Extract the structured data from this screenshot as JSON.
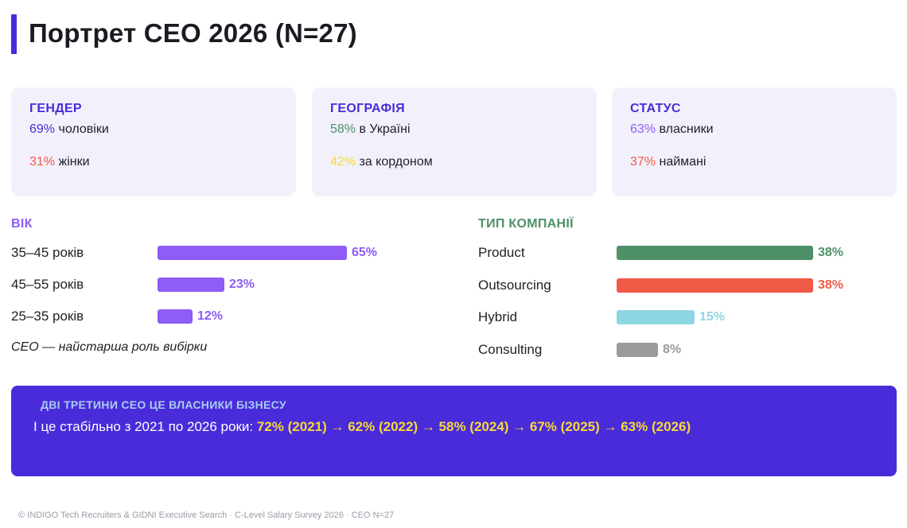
{
  "title": "Портрет CEO 2026 (N=27)",
  "cards": {
    "gender": {
      "label": "ГЕНДЕР",
      "row1_pct": "69%",
      "row1_text": "чоловіки",
      "row2_pct": "31%",
      "row2_text": "жінки"
    },
    "geo": {
      "label": "ГЕОГРАФІЯ",
      "row1_pct": "58%",
      "row1_text": "в Україні",
      "row2_pct": "42%",
      "row2_text": "за кордоном"
    },
    "status": {
      "label": "СТАТУС",
      "row1_pct": "63%",
      "row1_text": "власники",
      "row2_pct": "37%",
      "row2_text": "наймані"
    }
  },
  "age": {
    "label": "ВІК",
    "items": [
      {
        "label": "35–45 років",
        "value": 65,
        "value_label": "65%"
      },
      {
        "label": "45–55 років",
        "value": 23,
        "value_label": "23%"
      },
      {
        "label": "25–35 років",
        "value": 12,
        "value_label": "12%"
      }
    ],
    "note": "CEO — найстарша роль вибірки"
  },
  "company": {
    "label": "ТИП КОМПАНІЇ",
    "items": [
      {
        "label": "Product",
        "value": 38,
        "value_label": "38%",
        "color": "#4e9068"
      },
      {
        "label": "Outsourcing",
        "value": 38,
        "value_label": "38%",
        "color": "#ef5a47"
      },
      {
        "label": "Hybrid",
        "value": 15,
        "value_label": "15%",
        "color": "#8fd6e4"
      },
      {
        "label": "Consulting",
        "value": 8,
        "value_label": "8%",
        "color": "#9b9b9b"
      }
    ]
  },
  "banner": {
    "heading": "ДВІ ТРЕТИНИ CEO ЦЕ ВЛАСНИКИ БІЗНЕСУ",
    "text": "І це стабільно з 2021 по 2026 роки:",
    "trend": "72% (2021) → 62% (2022) → 58% (2024) → 67% (2025) → 63% (2026)"
  },
  "footer": "© INDIGO Tech Recruiters & GIDNI Executive Search · C-Level Salary Survey 2026 · CEO N=27",
  "colors": {
    "accent": "#4a2bd9",
    "age_bar": "#8e5cf6"
  }
}
